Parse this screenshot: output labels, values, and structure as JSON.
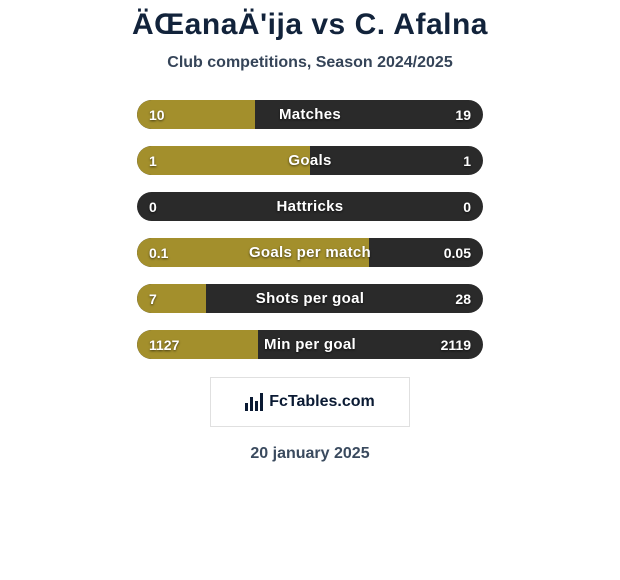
{
  "title": "ÄŒanaÄ'ija vs C. Afalna",
  "subtitle": "Club competitions, Season 2024/2025",
  "date": "20 january 2025",
  "branding": "FcTables.com",
  "colors": {
    "bar_bg": "#2a2a2a",
    "fill": "#a38f2c",
    "marker_left": "#ffffff",
    "marker_right": "#ffffff",
    "text": "#ffffff"
  },
  "rows": [
    {
      "label": "Matches",
      "left": "10",
      "right": "19",
      "pct": 34,
      "show_markers": true
    },
    {
      "label": "Goals",
      "left": "1",
      "right": "1",
      "pct": 50,
      "show_markers": true
    },
    {
      "label": "Hattricks",
      "left": "0",
      "right": "0",
      "pct": 0,
      "show_markers": false
    },
    {
      "label": "Goals per match",
      "left": "0.1",
      "right": "0.05",
      "pct": 67,
      "show_markers": false
    },
    {
      "label": "Shots per goal",
      "left": "7",
      "right": "28",
      "pct": 20,
      "show_markers": false
    },
    {
      "label": "Min per goal",
      "left": "1127",
      "right": "2119",
      "pct": 35,
      "show_markers": false
    }
  ]
}
